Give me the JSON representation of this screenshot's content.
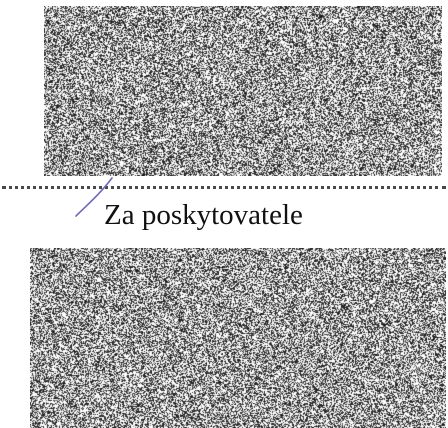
{
  "document": {
    "signature_caption": "Za poskytovatele"
  },
  "colors": {
    "ink": "#111111",
    "dots": "#4a4a4a",
    "pen_stroke": "#6a6ab8",
    "noise_dark": "#1a1a1a",
    "noise_mid": "#6e6e6e",
    "paper": "#ffffff"
  }
}
